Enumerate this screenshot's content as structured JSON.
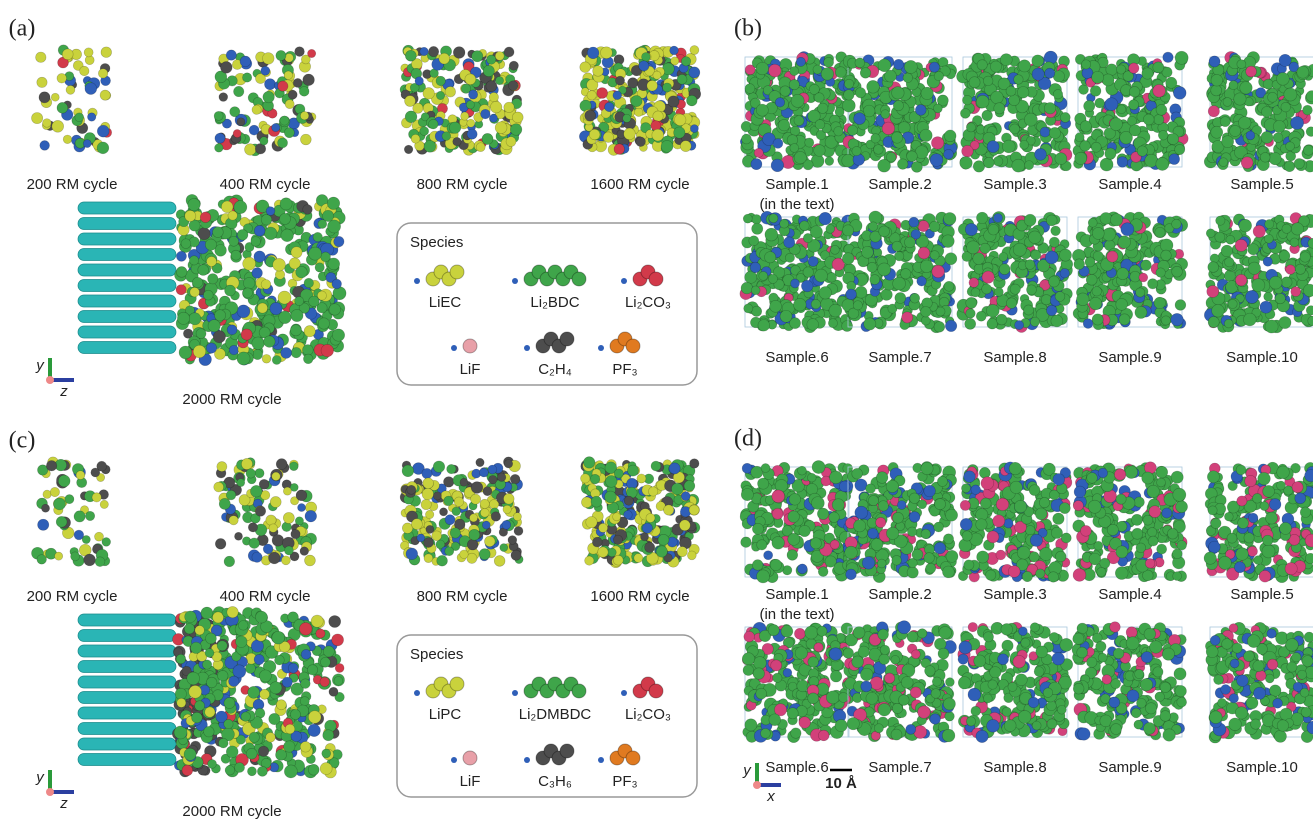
{
  "panels": [
    {
      "label": "(a)",
      "cycles": [
        "200 RM cycle",
        "400 RM cycle",
        "800 RM cycle",
        "1600 RM cycle",
        "2000 RM cycle"
      ],
      "legend": {
        "title": "Species",
        "items": [
          "LiEC",
          "Li₂BDC",
          "Li₂CO₃",
          "LiF",
          "C₂H₄",
          "PF₃"
        ]
      },
      "axes": [
        "y",
        "z"
      ]
    },
    {
      "label": "(b)",
      "samples": [
        "Sample.1",
        "Sample.2",
        "Sample.3",
        "Sample.4",
        "Sample.5",
        "Sample.6",
        "Sample.7",
        "Sample.8",
        "Sample.9",
        "Sample.10"
      ],
      "note": "(in the text)"
    },
    {
      "label": "(c)",
      "cycles": [
        "200 RM cycle",
        "400 RM cycle",
        "800 RM cycle",
        "1600 RM cycle",
        "2000 RM cycle"
      ],
      "legend": {
        "title": "Species",
        "items": [
          "LiPC",
          "Li₂DMBDC",
          "Li₂CO₃",
          "LiF",
          "C₃H₆",
          "PF₃"
        ]
      },
      "axes": [
        "y",
        "z"
      ]
    },
    {
      "label": "(d)",
      "samples": [
        "Sample.1",
        "Sample.2",
        "Sample.3",
        "Sample.4",
        "Sample.5",
        "Sample.6",
        "Sample.7",
        "Sample.8",
        "Sample.9",
        "Sample.10"
      ],
      "note": "(in the text)",
      "axes": [
        "y",
        "x"
      ],
      "scale": "10 Å"
    }
  ]
}
